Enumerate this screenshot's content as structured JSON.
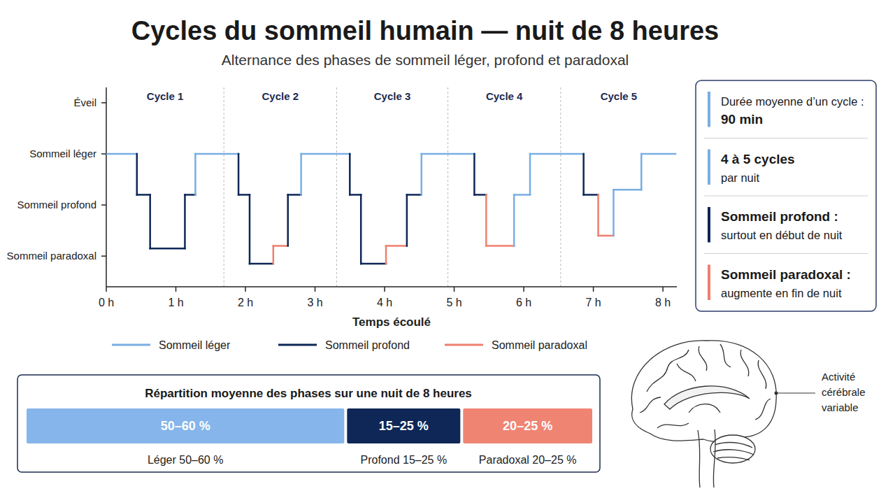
{
  "chart_data": [
    {
      "type": "line",
      "title": "Cycles du sommeil humain — nuit de 8 heures",
      "subtitle": "Alternance des phases de sommeil léger, profond et paradoxal",
      "x_label": "Temps écoulé",
      "x": [
        0,
        0.44,
        0.63,
        1.13,
        1.28,
        1.9,
        2.06,
        2.4,
        2.61,
        2.8,
        3.5,
        3.66,
        4.02,
        4.32,
        4.53,
        5.29,
        5.46,
        5.86,
        6.09,
        6.86,
        7.07,
        7.29,
        7.69,
        8.18
      ],
      "xlim": [
        0,
        8.2
      ],
      "xticks": [
        {
          "value": 0,
          "label": "0 h"
        },
        {
          "value": 1,
          "label": "1 h"
        },
        {
          "value": 2,
          "label": "2 h"
        },
        {
          "value": 3,
          "label": "3 h"
        },
        {
          "value": 4,
          "label": "4 h"
        },
        {
          "value": 5,
          "label": "5 h"
        },
        {
          "value": 6,
          "label": "6 h"
        },
        {
          "value": 7,
          "label": "7 h"
        },
        {
          "value": 8,
          "label": "8 h"
        }
      ],
      "ylim": [
        -0.6,
        3.3
      ],
      "yticks": [
        {
          "value": 3,
          "label": "Éveil"
        },
        {
          "value": 2,
          "label": "Sommeil léger"
        },
        {
          "value": 1,
          "label": "Sommeil profond"
        },
        {
          "value": 0,
          "label": "Sommeil paradoxal"
        }
      ],
      "grid": false,
      "legend": "bottom",
      "cycles": [
        "Cycle 1",
        "Cycle 2",
        "Cycle 3",
        "Cycle 4",
        "Cycle 5"
      ],
      "cycle_boundaries": [
        1.69,
        3.31,
        4.91,
        6.53
      ],
      "series": [
        {
          "name": "Sommeil léger",
          "color": "#79aee3",
          "line_style": "solid",
          "values": [
            2,
            null,
            null,
            null,
            2,
            null,
            null,
            null,
            null,
            2,
            null,
            null,
            null,
            null,
            2,
            null,
            null,
            1.2,
            2,
            null,
            null,
            1.3,
            2,
            null
          ]
        },
        {
          "name": "Sommeil profond",
          "color": "#0e2757",
          "line_style": "solid",
          "values": [
            null,
            1.2,
            0.15,
            1.2,
            null,
            1.2,
            -0.15,
            null,
            1.2,
            null,
            1.2,
            -0.15,
            null,
            1.2,
            null,
            1.2,
            null,
            null,
            null,
            1.2,
            null,
            null,
            null,
            null
          ]
        },
        {
          "name": "Sommeil paradoxal",
          "color": "#ef7f6e",
          "line_style": "solid",
          "values": [
            null,
            null,
            null,
            null,
            null,
            null,
            null,
            0.2,
            null,
            null,
            null,
            null,
            0.2,
            null,
            null,
            null,
            0.2,
            null,
            null,
            null,
            0.4,
            null,
            null,
            null
          ]
        }
      ]
    },
    {
      "type": "bar",
      "title": "Répartition moyenne des phases sur une nuit de 8 heures",
      "orientation": "horizontal",
      "stacked": true,
      "data_labels": true,
      "tick_labels": false,
      "categories": [
        "Léger 50–60 %",
        "Profond 15–25 %",
        "Paradoxal 20–25 %"
      ],
      "low": [
        50,
        15,
        20
      ],
      "high": [
        60,
        25,
        25
      ],
      "value_labels": [
        "50–60 %",
        "15–25 %",
        "20–25 %"
      ],
      "colors": [
        "#85b5ea",
        "#0e2757",
        "#f08473"
      ]
    }
  ],
  "key_facts": [
    {
      "color": "#79aee3",
      "lines": [
        {
          "text": "Durée moyenne d’un cycle :",
          "bold": false
        },
        {
          "text": "90 min",
          "bold": true
        }
      ]
    },
    {
      "color": "#79aee3",
      "lines": [
        {
          "text": "4 à 5 cycles",
          "bold": true
        },
        {
          "text": "par nuit",
          "bold": false
        }
      ]
    },
    {
      "color": "#0e2757",
      "lines": [
        {
          "text": "Sommeil profond :",
          "bold": true
        },
        {
          "text": "surtout en début de nuit",
          "bold": false
        }
      ]
    },
    {
      "color": "#ef7f6e",
      "lines": [
        {
          "text": "Sommeil paradoxal :",
          "bold": true
        },
        {
          "text": "augmente en fin de nuit",
          "bold": false
        }
      ]
    }
  ],
  "illustration": {
    "label": "Activité cérébrale variable"
  }
}
